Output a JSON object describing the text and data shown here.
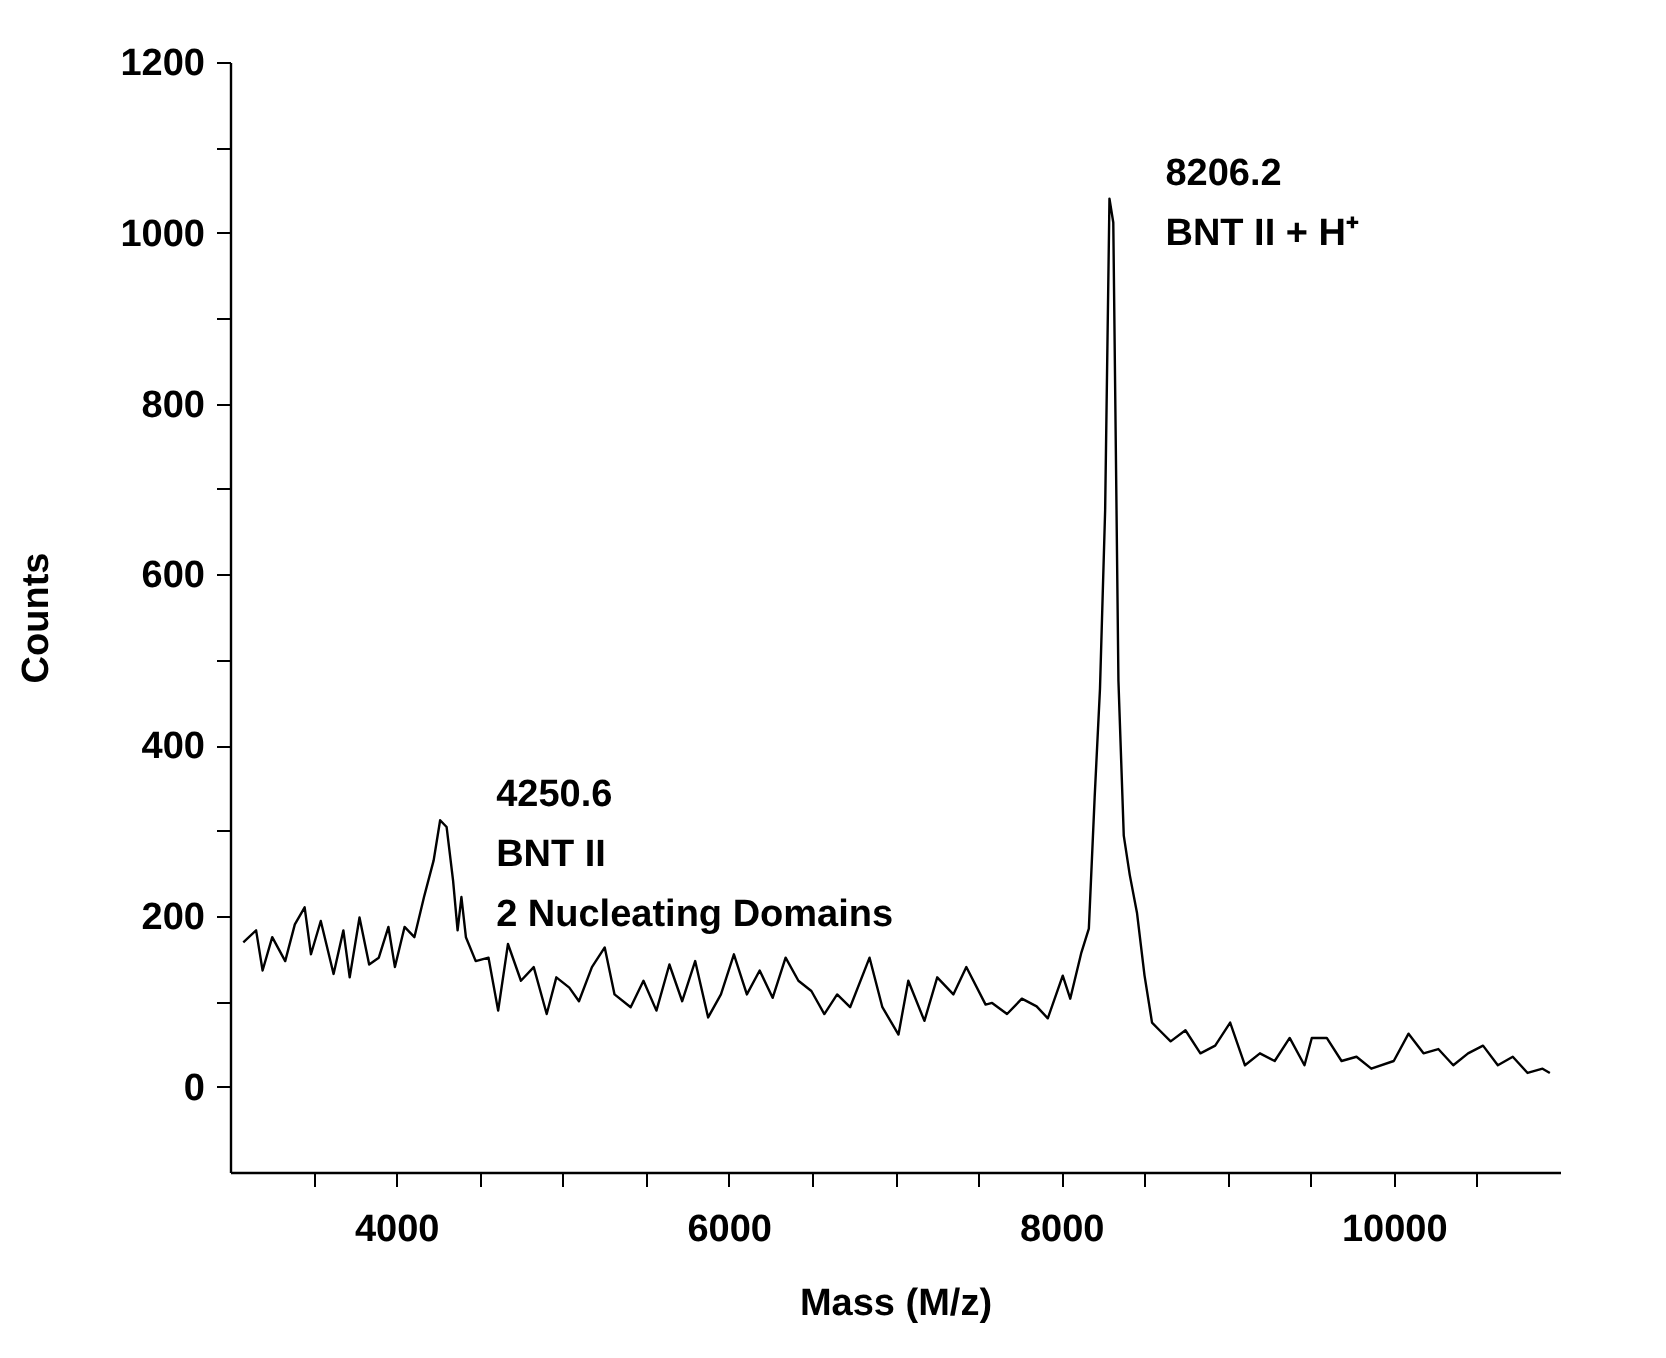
{
  "chart_data": {
    "type": "line",
    "xlabel": "Mass (M/z)",
    "ylabel": "Counts",
    "xlim": [
      3000,
      11000
    ],
    "ylim": [
      -100,
      1200
    ],
    "xticks": [
      {
        "value": 3500,
        "label": null
      },
      4000,
      {
        "value": 4500,
        "label": null
      },
      {
        "value": 5000,
        "label": null
      },
      {
        "value": 5500,
        "label": null
      },
      6000,
      {
        "value": 6500,
        "label": null
      },
      {
        "value": 7000,
        "label": null
      },
      {
        "value": 7500,
        "label": null
      },
      8000,
      {
        "value": 8500,
        "label": null
      },
      {
        "value": 9000,
        "label": null
      },
      {
        "value": 9500,
        "label": null
      },
      10000,
      {
        "value": 10500,
        "label": null
      }
    ],
    "yticks": [
      0,
      {
        "value": 100,
        "label": null
      },
      200,
      {
        "value": 300,
        "label": null
      },
      400,
      {
        "value": 500,
        "label": null
      },
      600,
      {
        "value": 700,
        "label": null
      },
      800,
      {
        "value": 900,
        "label": null
      },
      1000,
      {
        "value": 1100,
        "label": null
      },
      1200
    ],
    "grid": false,
    "marker": "none",
    "line_style": "solid",
    "series": [
      {
        "color": "#000000",
        "x": [
          3080,
          3157,
          3196,
          3254,
          3332,
          3390,
          3449,
          3487,
          3546,
          3623,
          3682,
          3720,
          3779,
          3837,
          3895,
          3953,
          3992,
          4050,
          4109,
          4167,
          4225,
          4264,
          4303,
          4342,
          4369,
          4392,
          4419,
          4478,
          4555,
          4613,
          4672,
          4750,
          4827,
          4905,
          4963,
          5041,
          5099,
          5177,
          5254,
          5313,
          5410,
          5487,
          5565,
          5643,
          5720,
          5798,
          5876,
          5953,
          6031,
          6109,
          6186,
          6264,
          6342,
          6419,
          6497,
          6575,
          6652,
          6730,
          6847,
          6924,
          7021,
          7080,
          7177,
          7254,
          7351,
          7429,
          7545,
          7584,
          7674,
          7763,
          7852,
          7919,
          8009,
          8054,
          8121,
          8166,
          8201,
          8233,
          8264,
          8290,
          8313,
          8344,
          8376,
          8412,
          8456,
          8501,
          8546,
          8591,
          8658,
          8747,
          8837,
          8926,
          9016,
          9105,
          9195,
          9284,
          9374,
          9463,
          9507,
          9597,
          9686,
          9776,
          9865,
          10000,
          10089,
          10179,
          10268,
          10358,
          10447,
          10537,
          10626,
          10716,
          10805,
          10895,
          10939
        ],
        "values": [
          169,
          183,
          136,
          175,
          147,
          190,
          210,
          155,
          194,
          132,
          183,
          128,
          198,
          143,
          151,
          187,
          140,
          187,
          175,
          222,
          265,
          312,
          304,
          241,
          183,
          222,
          175,
          147,
          151,
          89,
          167,
          124,
          140,
          85,
          128,
          116,
          100,
          140,
          163,
          108,
          93,
          124,
          89,
          143,
          100,
          147,
          81,
          108,
          155,
          108,
          136,
          104,
          151,
          124,
          112,
          85,
          108,
          93,
          151,
          93,
          61,
          124,
          77,
          128,
          108,
          140,
          96,
          98,
          85,
          103,
          94,
          80,
          130,
          103,
          157,
          185,
          339,
          466,
          675,
          1040,
          1012,
          475,
          294,
          248,
          203,
          130,
          75,
          66,
          53,
          66,
          39,
          48,
          75,
          25,
          39,
          30,
          57,
          25,
          57,
          57,
          30,
          35,
          21,
          30,
          62,
          39,
          44,
          25,
          39,
          48,
          25,
          35,
          16,
          21,
          16
        ]
      }
    ],
    "annotations": [
      {
        "text": "4250.6\nBNT II\n2 Nucleating Domains",
        "x": 4264,
        "y": 312
      },
      {
        "text": "8206.2\nBNT II + H⁺",
        "x": 8290,
        "y": 1040
      }
    ]
  }
}
